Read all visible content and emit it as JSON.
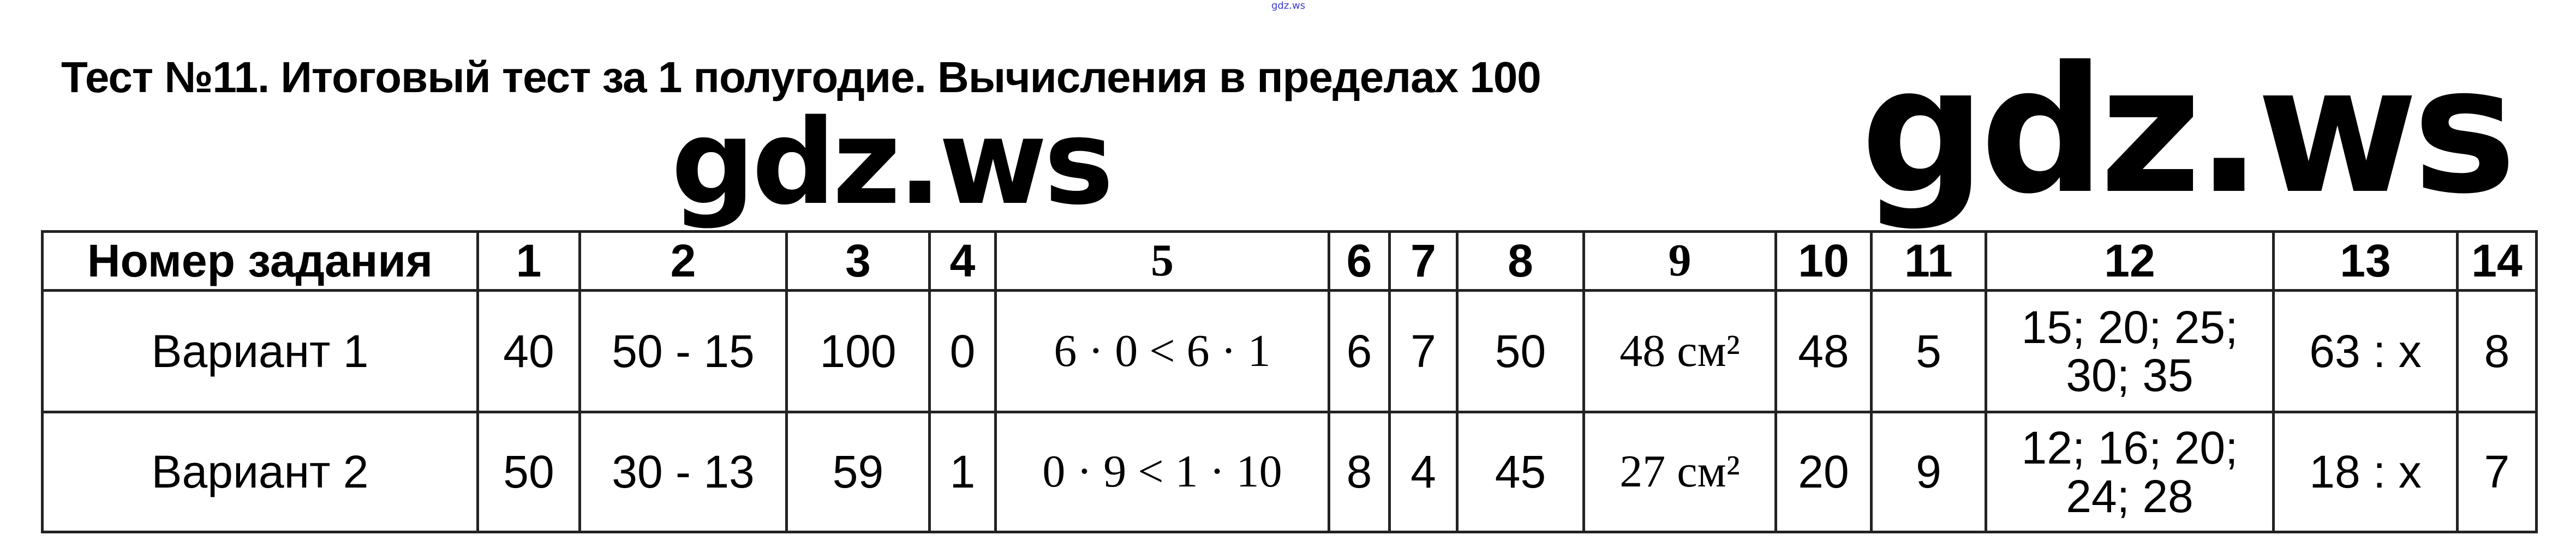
{
  "watermark_small": "gdz.ws",
  "title": "Тест №11. Итоговый тест за 1 полугодие. Вычисления в пределах 100",
  "watermarks": [
    "gdz.ws",
    "gdz.ws"
  ],
  "table": {
    "header": [
      "Номер задания",
      "1",
      "2",
      "3",
      "4",
      "5",
      "6",
      "7",
      "8",
      "9",
      "10",
      "11",
      "12",
      "13",
      "14"
    ],
    "rows": [
      [
        "Вариант 1",
        "40",
        "50 - 15",
        "100",
        "0",
        "6 · 0 < 6 · 1",
        "6",
        "7",
        "50",
        "48 см²",
        "48",
        "5",
        "15; 20; 25; 30; 35",
        "63 : x",
        "8"
      ],
      [
        "Вариант 2",
        "50",
        "30 - 13",
        "59",
        "1",
        "0 · 9 < 1 · 10",
        "8",
        "4",
        "45",
        "27 см²",
        "20",
        "9",
        "12; 16; 20; 24; 28",
        "18 : x",
        "7"
      ]
    ]
  }
}
